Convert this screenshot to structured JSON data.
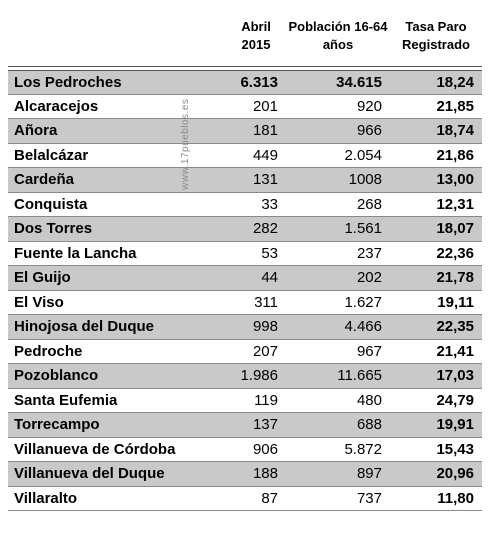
{
  "headers": {
    "abril": "Abril 2015",
    "poblacion": "Población 16-64 años",
    "tasa": "Tasa Paro Registrado"
  },
  "watermark": "www.17pueblos.es",
  "rows": [
    {
      "name": "Los Pedroches",
      "abril": "6.313",
      "poblacion": "34.615",
      "tasa": "18,24"
    },
    {
      "name": "Alcaracejos",
      "abril": "201",
      "poblacion": "920",
      "tasa": "21,85"
    },
    {
      "name": "Añora",
      "abril": "181",
      "poblacion": "966",
      "tasa": "18,74"
    },
    {
      "name": "Belalcázar",
      "abril": "449",
      "poblacion": "2.054",
      "tasa": "21,86"
    },
    {
      "name": "Cardeña",
      "abril": "131",
      "poblacion": "1008",
      "tasa": "13,00"
    },
    {
      "name": "Conquista",
      "abril": "33",
      "poblacion": "268",
      "tasa": "12,31"
    },
    {
      "name": "Dos Torres",
      "abril": "282",
      "poblacion": "1.561",
      "tasa": "18,07"
    },
    {
      "name": "Fuente la Lancha",
      "abril": "53",
      "poblacion": "237",
      "tasa": "22,36"
    },
    {
      "name": "El Guijo",
      "abril": "44",
      "poblacion": "202",
      "tasa": "21,78"
    },
    {
      "name": "El Viso",
      "abril": "311",
      "poblacion": "1.627",
      "tasa": "19,11"
    },
    {
      "name": "Hinojosa del Duque",
      "abril": "998",
      "poblacion": "4.466",
      "tasa": "22,35"
    },
    {
      "name": "Pedroche",
      "abril": "207",
      "poblacion": "967",
      "tasa": "21,41"
    },
    {
      "name": "Pozoblanco",
      "abril": "1.986",
      "poblacion": "11.665",
      "tasa": "17,03"
    },
    {
      "name": "Santa Eufemia",
      "abril": "119",
      "poblacion": "480",
      "tasa": "24,79"
    },
    {
      "name": "Torrecampo",
      "abril": "137",
      "poblacion": "688",
      "tasa": "19,91"
    },
    {
      "name": "Villanueva de Córdoba",
      "abril": "906",
      "poblacion": "5.872",
      "tasa": "15,43"
    },
    {
      "name": "Villanueva del Duque",
      "abril": "188",
      "poblacion": "897",
      "tasa": "20,96"
    },
    {
      "name": "Villaralto",
      "abril": "87",
      "poblacion": "737",
      "tasa": "11,80"
    }
  ]
}
